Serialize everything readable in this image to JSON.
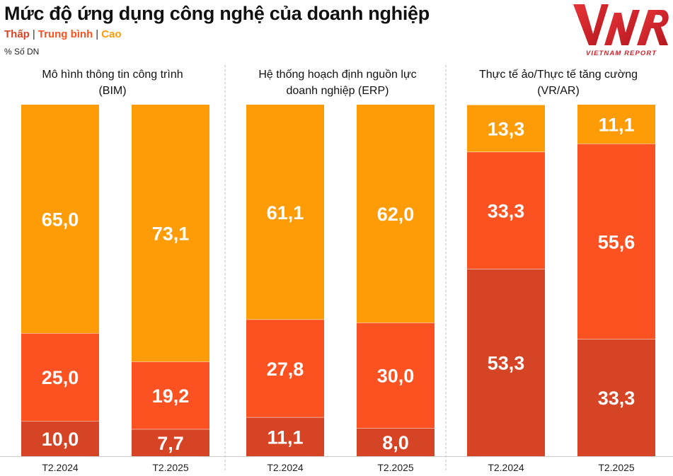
{
  "title": "Mức độ ứng dụng công nghệ của doanh nghiệp",
  "legend": [
    {
      "label": "Thấp",
      "color": "#d64426"
    },
    {
      "label": "Trung bình",
      "color": "#fc5120"
    },
    {
      "label": "Cao",
      "color": "#fd9c06"
    }
  ],
  "unit_label": "% Số DN",
  "logo": {
    "mark": "VNR",
    "caption": "VIETNAM REPORT"
  },
  "colors": {
    "low": "#d64426",
    "medium": "#fc5120",
    "high": "#fd9c06",
    "label": "#ffffff",
    "divider": "#bbbbbb"
  },
  "chart_data": {
    "type": "bar",
    "stacked": true,
    "normalized_to": 100,
    "series_order": [
      "Thấp",
      "Trung bình",
      "Cao"
    ],
    "panels": [
      {
        "title_lines": [
          "Mô hình thông tin công trình",
          "(BIM)"
        ],
        "categories": [
          "T2.2024",
          "T2.2025"
        ],
        "series": [
          {
            "name": "Thấp",
            "values": [
              10.0,
              7.7
            ],
            "labels": [
              "10,0",
              "7,7"
            ]
          },
          {
            "name": "Trung bình",
            "values": [
              25.0,
              19.2
            ],
            "labels": [
              "25,0",
              "19,2"
            ]
          },
          {
            "name": "Cao",
            "values": [
              65.0,
              73.1
            ],
            "labels": [
              "65,0",
              "73,1"
            ]
          }
        ]
      },
      {
        "title_lines": [
          "Hệ thống hoạch định nguồn lực",
          "doanh nghiệp (ERP)"
        ],
        "categories": [
          "T2.2024",
          "T2.2025"
        ],
        "series": [
          {
            "name": "Thấp",
            "values": [
              11.1,
              8.0
            ],
            "labels": [
              "11,1",
              "8,0"
            ]
          },
          {
            "name": "Trung bình",
            "values": [
              27.8,
              30.0
            ],
            "labels": [
              "27,8",
              "30,0"
            ]
          },
          {
            "name": "Cao",
            "values": [
              61.1,
              62.0
            ],
            "labels": [
              "61,1",
              "62,0"
            ]
          }
        ]
      },
      {
        "title_lines": [
          "Thực tế ảo/Thực tế tăng cường",
          "(VR/AR)"
        ],
        "categories": [
          "T2.2024",
          "T2.2025"
        ],
        "series": [
          {
            "name": "Thấp",
            "values": [
              53.3,
              33.3
            ],
            "labels": [
              "53,3",
              "33,3"
            ]
          },
          {
            "name": "Trung bình",
            "values": [
              33.3,
              55.6
            ],
            "labels": [
              "33,3",
              "55,6"
            ]
          },
          {
            "name": "Cao",
            "values": [
              13.3,
              11.1
            ],
            "labels": [
              "13,3",
              "11,1"
            ]
          }
        ]
      }
    ]
  }
}
